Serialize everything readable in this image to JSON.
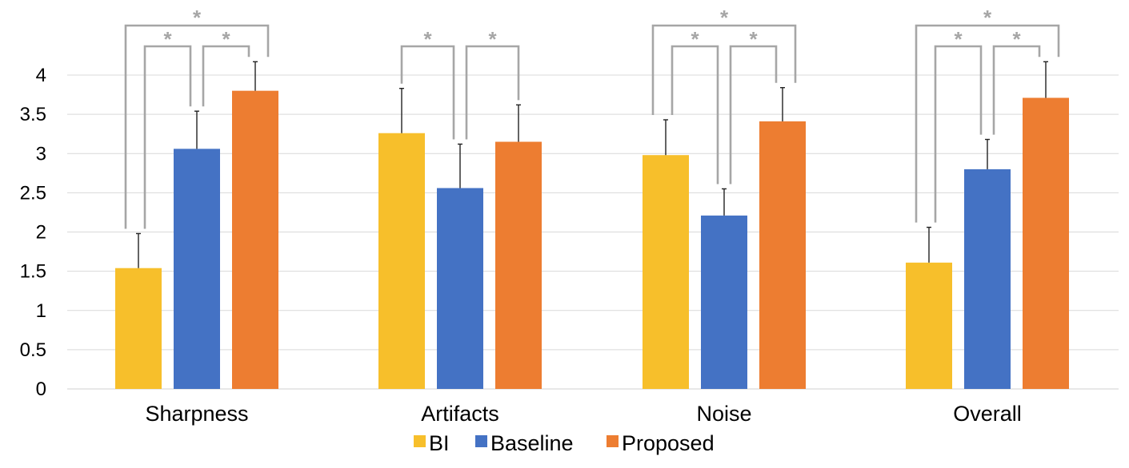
{
  "chart_data": {
    "type": "bar",
    "title": "",
    "xlabel": "",
    "ylabel": "",
    "ylim": [
      0,
      4
    ],
    "yticks": [
      0,
      0.5,
      1,
      1.5,
      2,
      2.5,
      3,
      3.5,
      4
    ],
    "ytick_labels": [
      "0",
      "0.5",
      "1",
      "1.5",
      "2",
      "2.5",
      "3",
      "3.5",
      "4"
    ],
    "grid": true,
    "legend_position": "bottom",
    "categories": [
      "Sharpness",
      "Artifacts",
      "Noise",
      "Overall"
    ],
    "series": [
      {
        "name": "BI",
        "color": "#F7BF2B",
        "values": [
          1.54,
          3.26,
          2.98,
          1.61
        ],
        "errors": [
          0.44,
          0.57,
          0.45,
          0.45
        ]
      },
      {
        "name": "Baseline",
        "color": "#4472C4",
        "values": [
          3.06,
          2.56,
          2.21,
          2.8
        ],
        "errors": [
          0.48,
          0.56,
          0.34,
          0.38
        ]
      },
      {
        "name": "Proposed",
        "color": "#ED7D31",
        "values": [
          3.8,
          3.15,
          3.41,
          3.71
        ],
        "errors": [
          0.37,
          0.47,
          0.43,
          0.46
        ]
      }
    ],
    "significance": [
      {
        "category": 0,
        "pairs": [
          [
            0,
            1
          ],
          [
            1,
            2
          ],
          [
            0,
            2
          ]
        ],
        "label": "*"
      },
      {
        "category": 1,
        "pairs": [
          [
            0,
            1
          ],
          [
            1,
            2
          ]
        ],
        "label": "*"
      },
      {
        "category": 2,
        "pairs": [
          [
            0,
            1
          ],
          [
            1,
            2
          ],
          [
            0,
            2
          ]
        ],
        "label": "*"
      },
      {
        "category": 3,
        "pairs": [
          [
            0,
            1
          ],
          [
            1,
            2
          ],
          [
            0,
            2
          ]
        ],
        "label": "*"
      }
    ]
  }
}
